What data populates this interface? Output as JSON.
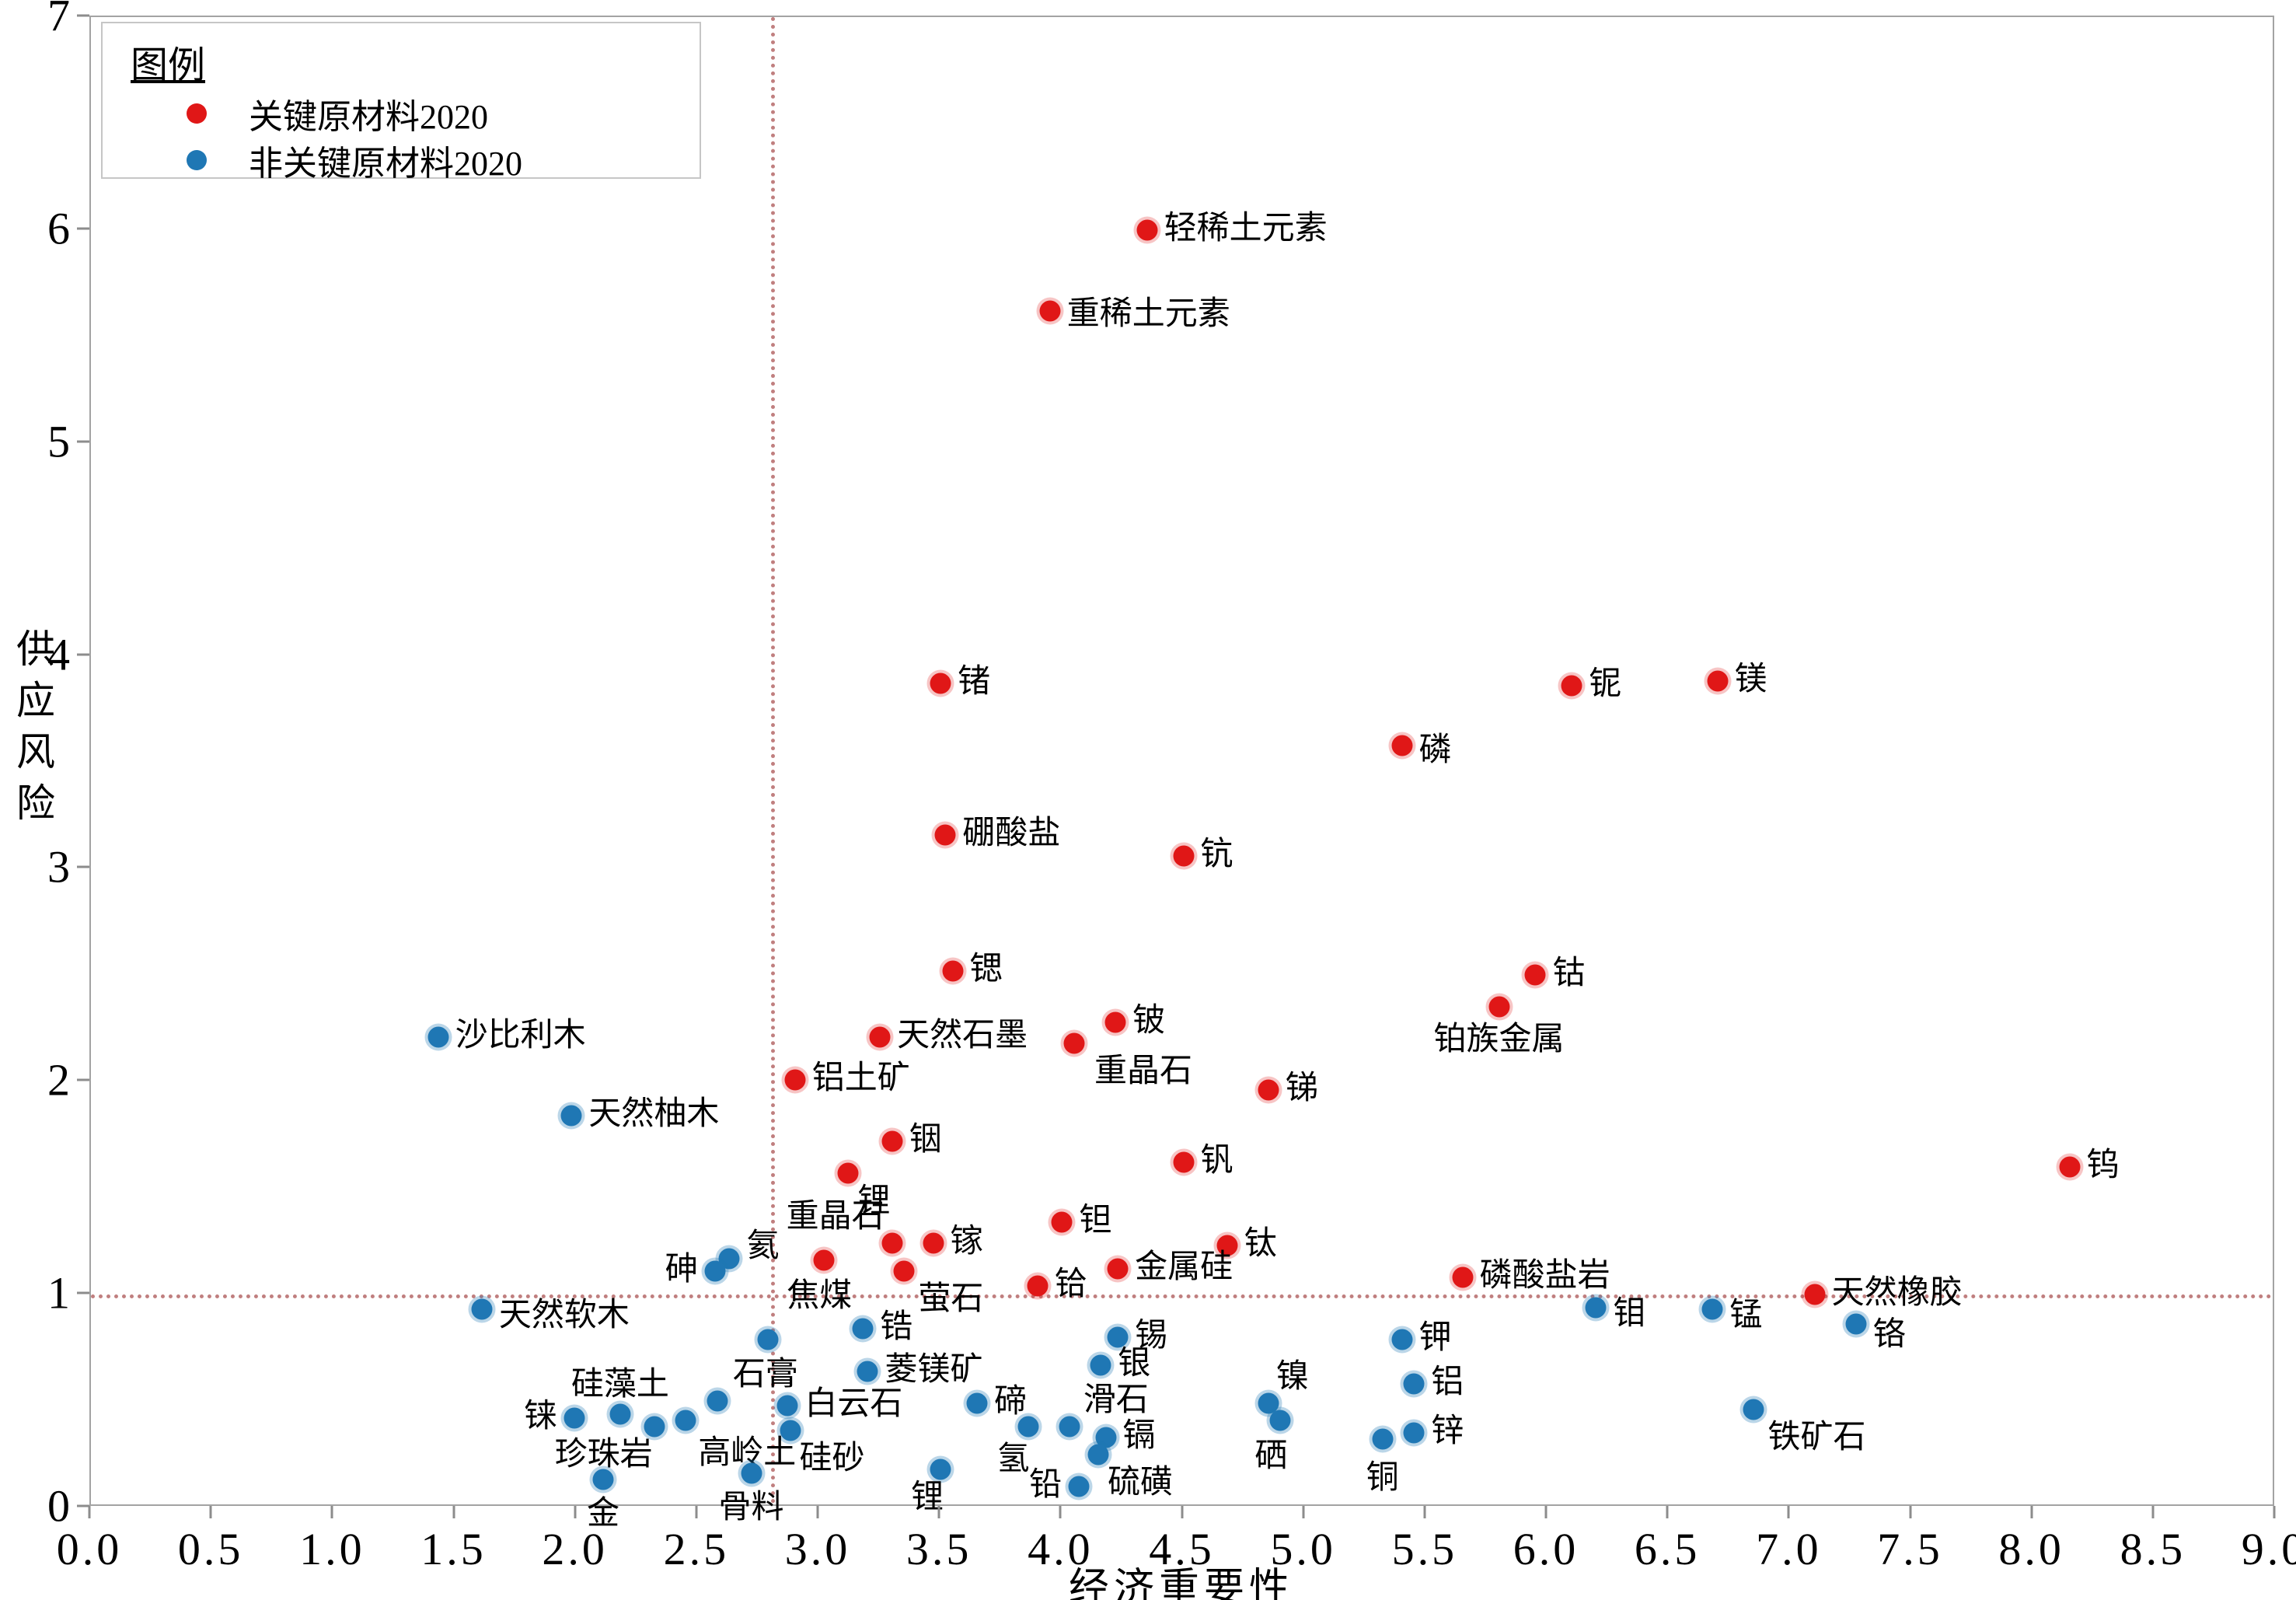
{
  "chart_data": {
    "type": "scatter",
    "title": "",
    "xlabel": "经济重要性",
    "ylabel": "供应风险",
    "xlim": [
      0,
      9
    ],
    "ylim": [
      0,
      7
    ],
    "x_ticks": [
      "0.0",
      "0.5",
      "1.0",
      "1.5",
      "2.0",
      "2.5",
      "3.0",
      "3.5",
      "4.0",
      "4.5",
      "5.0",
      "5.5",
      "6.0",
      "6.5",
      "7.0",
      "7.5",
      "8.0",
      "8.5",
      "9.0"
    ],
    "y_ticks": [
      "0",
      "1",
      "2",
      "3",
      "4",
      "5",
      "6",
      "7"
    ],
    "grid": false,
    "thresholds": {
      "x": 2.8,
      "y": 1.0,
      "line_color": "#c07f7f",
      "line_style": "dotted"
    },
    "legend": {
      "title": "图例",
      "position": "upper-left",
      "items": [
        {
          "label": "关键原材料2020",
          "color": "#e01717"
        },
        {
          "label": "非关键原材料2020",
          "color": "#1f77b4"
        }
      ]
    },
    "series": [
      {
        "name": "关键原材料2020",
        "color": "#e01717",
        "points": [
          {
            "label": "轻稀土元素",
            "x": 4.35,
            "y": 6.0,
            "anchor": "right"
          },
          {
            "label": "重稀土元素",
            "x": 3.95,
            "y": 5.62,
            "anchor": "right",
            "dy": 6
          },
          {
            "label": "锗",
            "x": 3.5,
            "y": 3.87,
            "anchor": "right"
          },
          {
            "label": "铌",
            "x": 6.1,
            "y": 3.86,
            "anchor": "right"
          },
          {
            "label": "镁",
            "x": 6.7,
            "y": 3.88,
            "anchor": "right"
          },
          {
            "label": "磷",
            "x": 5.4,
            "y": 3.58,
            "anchor": "right",
            "dy": 8
          },
          {
            "label": "硼酸盐",
            "x": 3.52,
            "y": 3.16,
            "anchor": "right"
          },
          {
            "label": "钪",
            "x": 4.5,
            "y": 3.06,
            "anchor": "right"
          },
          {
            "label": "锶",
            "x": 3.55,
            "y": 2.52,
            "anchor": "right"
          },
          {
            "label": "钴",
            "x": 5.95,
            "y": 2.5,
            "anchor": "right"
          },
          {
            "label": "铂族金属",
            "x": 5.8,
            "y": 2.35,
            "anchor": "below",
            "dy": 4
          },
          {
            "label": "天然石墨",
            "x": 3.25,
            "y": 2.21,
            "anchor": "right"
          },
          {
            "label": "铍",
            "x": 4.22,
            "y": 2.28,
            "anchor": "right"
          },
          {
            "label": "重晶石",
            "x": 4.05,
            "y": 2.18,
            "anchor": "below-right",
            "dx": 14
          },
          {
            "label": "铝土矿",
            "x": 2.9,
            "y": 2.01,
            "anchor": "right"
          },
          {
            "label": "锑",
            "x": 4.85,
            "y": 1.96,
            "anchor": "right"
          },
          {
            "label": "铟",
            "x": 3.3,
            "y": 1.72,
            "anchor": "right"
          },
          {
            "label": "钒",
            "x": 4.5,
            "y": 1.62,
            "anchor": "right"
          },
          {
            "label": "锂",
            "x": 3.12,
            "y": 1.57,
            "anchor": "below-right"
          },
          {
            "label": "钨",
            "x": 8.15,
            "y": 1.6,
            "anchor": "right"
          },
          {
            "label": "钽",
            "x": 4.0,
            "y": 1.34,
            "anchor": "right"
          },
          {
            "label": "重晶石",
            "x": 3.3,
            "y": 1.24,
            "anchor": "above-left"
          },
          {
            "label": "镓",
            "x": 3.47,
            "y": 1.24,
            "anchor": "right"
          },
          {
            "label": "钛",
            "x": 4.68,
            "y": 1.23,
            "anchor": "right"
          },
          {
            "label": "焦煤",
            "x": 3.02,
            "y": 1.16,
            "anchor": "below",
            "dx": -6,
            "dy": 8
          },
          {
            "label": "萤石",
            "x": 3.35,
            "y": 1.11,
            "anchor": "below-right",
            "dx": 6
          },
          {
            "label": "铪",
            "x": 3.9,
            "y": 1.04,
            "anchor": "right"
          },
          {
            "label": "金属硅",
            "x": 4.23,
            "y": 1.12,
            "anchor": "right"
          },
          {
            "label": "磷酸盐岩",
            "x": 5.65,
            "y": 1.08,
            "anchor": "right"
          },
          {
            "label": "天然橡胶",
            "x": 7.1,
            "y": 1.0,
            "anchor": "right"
          }
        ]
      },
      {
        "name": "非关键原材料2020",
        "color": "#1f77b4",
        "points": [
          {
            "label": "沙比利木",
            "x": 1.43,
            "y": 2.21,
            "anchor": "right"
          },
          {
            "label": "天然柚木",
            "x": 1.98,
            "y": 1.84,
            "anchor": "right"
          },
          {
            "label": "氦",
            "x": 2.63,
            "y": 1.17,
            "anchor": "right",
            "dy": -14
          },
          {
            "label": "砷",
            "x": 2.57,
            "y": 1.11,
            "anchor": "left"
          },
          {
            "label": "天然软木",
            "x": 1.61,
            "y": 0.93,
            "anchor": "right",
            "dy": 10
          },
          {
            "label": "钼",
            "x": 6.2,
            "y": 0.94,
            "anchor": "right",
            "dy": 10
          },
          {
            "label": "锰",
            "x": 6.68,
            "y": 0.93,
            "anchor": "right",
            "dy": 10
          },
          {
            "label": "铬",
            "x": 7.27,
            "y": 0.86,
            "anchor": "right",
            "dy": 16
          },
          {
            "label": "锡",
            "x": 4.23,
            "y": 0.8,
            "anchor": "right"
          },
          {
            "label": "锆",
            "x": 3.18,
            "y": 0.84,
            "anchor": "right"
          },
          {
            "label": "菱镁矿",
            "x": 3.2,
            "y": 0.64,
            "anchor": "right"
          },
          {
            "label": "石膏",
            "x": 2.58,
            "y": 0.5,
            "anchor": "above-right",
            "dx": 10
          },
          {
            "label": "",
            "x": 2.79,
            "y": 0.79,
            "anchor": "none"
          },
          {
            "label": "钾",
            "x": 5.4,
            "y": 0.79,
            "anchor": "right"
          },
          {
            "label": "银",
            "x": 4.16,
            "y": 0.67,
            "anchor": "right"
          },
          {
            "label": "白云石",
            "x": 2.87,
            "y": 0.48,
            "anchor": "right"
          },
          {
            "label": "硅砂",
            "x": 2.88,
            "y": 0.36,
            "anchor": "below-right"
          },
          {
            "label": "铝",
            "x": 5.45,
            "y": 0.58,
            "anchor": "right"
          },
          {
            "label": "碲",
            "x": 3.65,
            "y": 0.49,
            "anchor": "right"
          },
          {
            "label": "镍",
            "x": 4.85,
            "y": 0.49,
            "anchor": "above-right"
          },
          {
            "label": "硒",
            "x": 4.9,
            "y": 0.41,
            "anchor": "below",
            "dx": -12,
            "dy": 8
          },
          {
            "label": "硅藻土",
            "x": 2.18,
            "y": 0.44,
            "anchor": "above"
          },
          {
            "label": "铼",
            "x": 1.99,
            "y": 0.42,
            "anchor": "left"
          },
          {
            "label": "珍珠岩",
            "x": 2.32,
            "y": 0.38,
            "anchor": "below-left",
            "dx": 10
          },
          {
            "label": "高岭土",
            "x": 2.45,
            "y": 0.41,
            "anchor": "below-right",
            "dx": 4,
            "dy": 6
          },
          {
            "label": "滑石",
            "x": 4.03,
            "y": 0.38,
            "anchor": "above-right",
            "dx": 8
          },
          {
            "label": "氢",
            "x": 3.86,
            "y": 0.38,
            "anchor": "below-left",
            "dx": 14,
            "dy": 6
          },
          {
            "label": "镉",
            "x": 4.18,
            "y": 0.33,
            "anchor": "right"
          },
          {
            "label": "铜",
            "x": 5.32,
            "y": 0.32,
            "anchor": "below",
            "dy": 12
          },
          {
            "label": "锌",
            "x": 5.45,
            "y": 0.35,
            "anchor": "right"
          },
          {
            "label": "硫磺",
            "x": 4.15,
            "y": 0.25,
            "anchor": "below-right"
          },
          {
            "label": "骨料",
            "x": 2.72,
            "y": 0.16,
            "anchor": "below",
            "dy": 6
          },
          {
            "label": "金",
            "x": 2.11,
            "y": 0.13,
            "anchor": "below",
            "dy": 6
          },
          {
            "label": "锂",
            "x": 3.5,
            "y": 0.18,
            "anchor": "below-left",
            "dx": 16
          },
          {
            "label": "铅",
            "x": 4.07,
            "y": 0.1,
            "anchor": "left"
          },
          {
            "label": "铁矿石",
            "x": 6.85,
            "y": 0.46,
            "anchor": "below-right",
            "dx": 6
          }
        ]
      }
    ]
  }
}
